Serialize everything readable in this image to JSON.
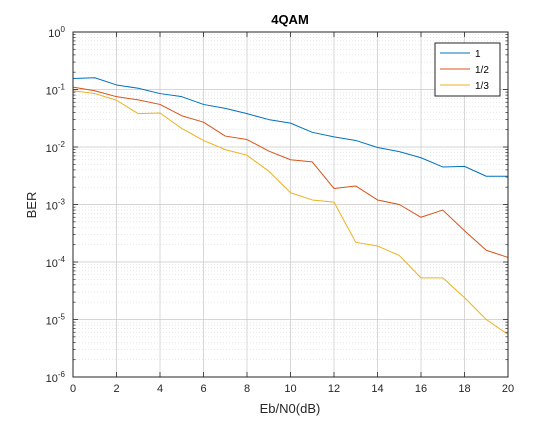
{
  "chart_data": {
    "type": "line",
    "title": "4QAM",
    "xlabel": "Eb/N0(dB)",
    "ylabel": "BER",
    "xlim": [
      0,
      20
    ],
    "ylim": [
      1e-06,
      1
    ],
    "yscale": "log",
    "grid": true,
    "minor_grid": true,
    "legend_position": "top-right",
    "x": [
      0,
      1,
      2,
      3,
      4,
      5,
      6,
      7,
      8,
      9,
      10,
      11,
      12,
      13,
      14,
      15,
      16,
      17,
      18,
      19,
      20
    ],
    "xticks": [
      "0",
      "2",
      "4",
      "6",
      "8",
      "10",
      "12",
      "14",
      "16",
      "18",
      "20"
    ],
    "yticks": [
      {
        "base": "10",
        "exp": "0"
      },
      {
        "base": "10",
        "exp": "-1"
      },
      {
        "base": "10",
        "exp": "-2"
      },
      {
        "base": "10",
        "exp": "-3"
      },
      {
        "base": "10",
        "exp": "-4"
      },
      {
        "base": "10",
        "exp": "-5"
      },
      {
        "base": "10",
        "exp": "-6"
      }
    ],
    "series": [
      {
        "name": "1",
        "color": "#0072BD",
        "values": [
          0.155,
          0.16,
          0.12,
          0.105,
          0.085,
          0.075,
          0.055,
          0.047,
          0.038,
          0.03,
          0.026,
          0.018,
          0.015,
          0.013,
          0.0098,
          0.0083,
          0.0065,
          0.0045,
          0.0046,
          0.0031,
          0.0031
        ]
      },
      {
        "name": "1/2",
        "color": "#D95319",
        "values": [
          0.11,
          0.095,
          0.075,
          0.066,
          0.055,
          0.035,
          0.027,
          0.0155,
          0.0135,
          0.0085,
          0.006,
          0.0055,
          0.0019,
          0.0021,
          0.0012,
          0.001,
          0.0006,
          0.0008,
          0.00035,
          0.00016,
          0.00012
        ]
      },
      {
        "name": "1/3",
        "color": "#EDB120",
        "values": [
          0.095,
          0.085,
          0.065,
          0.038,
          0.039,
          0.021,
          0.013,
          0.009,
          0.0072,
          0.0038,
          0.0016,
          0.0012,
          0.0011,
          0.00022,
          0.00019,
          0.00013,
          5.3e-05,
          5.3e-05,
          2.4e-05,
          1e-05,
          5.5e-06
        ]
      }
    ]
  }
}
